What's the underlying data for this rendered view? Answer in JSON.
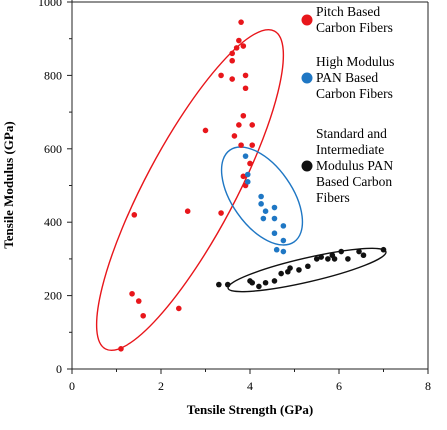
{
  "chart_data": {
    "type": "scatter",
    "title": "",
    "xlabel": "Tensile Strength (GPa)",
    "ylabel": "Tensile Modulus (GPa)",
    "xlim": [
      0,
      8
    ],
    "ylim": [
      0,
      1000
    ],
    "x_ticks": [
      "0",
      "2",
      "4",
      "6",
      "8"
    ],
    "y_ticks": [
      "0",
      "200",
      "400",
      "600",
      "800",
      "1000"
    ],
    "grid": false,
    "legend_position": "top-right",
    "legend": [
      {
        "color": "#e8161b",
        "lines": [
          "Pitch Based",
          "Carbon Fibers"
        ]
      },
      {
        "color": "#1f77c4",
        "lines": [
          "High Modulus",
          "PAN Based",
          "Carbon Fibers"
        ]
      },
      {
        "color": "#111111",
        "lines": [
          "Standard and",
          "Intermediate",
          "Modulus PAN",
          "Based Carbon",
          "Fibers"
        ]
      }
    ],
    "series": [
      {
        "name": "Pitch Based Carbon Fibers",
        "color": "#e8161b",
        "points": [
          [
            1.1,
            55
          ],
          [
            1.35,
            205
          ],
          [
            1.5,
            185
          ],
          [
            1.6,
            145
          ],
          [
            1.4,
            420
          ],
          [
            2.4,
            165
          ],
          [
            2.6,
            430
          ],
          [
            3.0,
            650
          ],
          [
            3.6,
            790
          ],
          [
            3.9,
            800
          ],
          [
            3.9,
            765
          ],
          [
            3.35,
            425
          ],
          [
            3.35,
            800
          ],
          [
            3.6,
            840
          ],
          [
            3.6,
            860
          ],
          [
            3.7,
            875
          ],
          [
            3.85,
            880
          ],
          [
            3.75,
            895
          ],
          [
            3.8,
            945
          ],
          [
            3.8,
            610
          ],
          [
            3.65,
            635
          ],
          [
            3.75,
            665
          ],
          [
            3.85,
            690
          ],
          [
            4.05,
            665
          ],
          [
            4.05,
            610
          ],
          [
            4.0,
            560
          ],
          [
            3.85,
            525
          ],
          [
            3.9,
            500
          ]
        ]
      },
      {
        "name": "High Modulus PAN Based Carbon Fibers",
        "color": "#1f77c4",
        "points": [
          [
            3.9,
            580
          ],
          [
            3.95,
            530
          ],
          [
            3.95,
            510
          ],
          [
            4.25,
            470
          ],
          [
            4.25,
            450
          ],
          [
            4.35,
            430
          ],
          [
            4.3,
            410
          ],
          [
            4.55,
            440
          ],
          [
            4.55,
            410
          ],
          [
            4.75,
            390
          ],
          [
            4.55,
            370
          ],
          [
            4.75,
            350
          ],
          [
            4.6,
            325
          ],
          [
            4.75,
            320
          ]
        ]
      },
      {
        "name": "Standard and Intermediate Modulus PAN Based Carbon Fibers",
        "color": "#111111",
        "points": [
          [
            3.3,
            230
          ],
          [
            3.5,
            230
          ],
          [
            4.0,
            240
          ],
          [
            4.05,
            235
          ],
          [
            4.2,
            225
          ],
          [
            4.35,
            235
          ],
          [
            4.55,
            240
          ],
          [
            4.7,
            260
          ],
          [
            4.85,
            265
          ],
          [
            4.9,
            275
          ],
          [
            5.1,
            270
          ],
          [
            5.3,
            280
          ],
          [
            5.5,
            300
          ],
          [
            5.6,
            305
          ],
          [
            5.75,
            300
          ],
          [
            5.85,
            310
          ],
          [
            5.9,
            300
          ],
          [
            6.05,
            320
          ],
          [
            6.2,
            300
          ],
          [
            6.45,
            320
          ],
          [
            6.55,
            310
          ],
          [
            7.0,
            325
          ]
        ]
      }
    ]
  }
}
